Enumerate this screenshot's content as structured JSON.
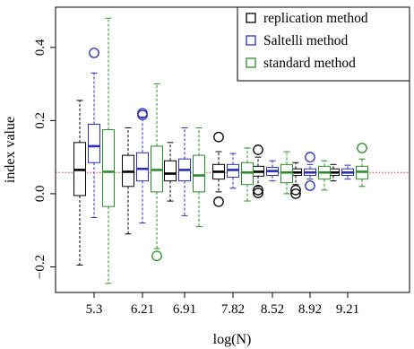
{
  "chart_data": {
    "type": "boxplot",
    "xlabel": "log(N)",
    "ylabel": "index value",
    "categories": [
      "5.3",
      "6.21",
      "6.91",
      "7.82",
      "8.52",
      "8.92",
      "9.21"
    ],
    "ylim": [
      -0.27,
      0.51
    ],
    "yticks": [
      -0.2,
      0.0,
      0.2,
      0.4
    ],
    "ytick_labels": [
      "−0.2",
      "0.0",
      "0.2",
      "0.4"
    ],
    "reference_line": {
      "y": 0.058,
      "color": "#e8302a",
      "style": "dotted"
    },
    "legend": {
      "position": "top-right"
    },
    "series": [
      {
        "name": "replication method",
        "color": "#000000",
        "boxes": [
          {
            "whisker_low": -0.195,
            "q1": -0.005,
            "median": 0.065,
            "q3": 0.14,
            "whisker_high": 0.255,
            "outliers": []
          },
          {
            "whisker_low": -0.11,
            "q1": 0.02,
            "median": 0.06,
            "q3": 0.105,
            "whisker_high": 0.18,
            "outliers": []
          },
          {
            "whisker_low": -0.02,
            "q1": 0.035,
            "median": 0.055,
            "q3": 0.09,
            "whisker_high": 0.14,
            "outliers": []
          },
          {
            "whisker_low": 0.005,
            "q1": 0.04,
            "median": 0.06,
            "q3": 0.08,
            "whisker_high": 0.115,
            "outliers": [
              0.155,
              -0.022
            ]
          },
          {
            "whisker_low": 0.02,
            "q1": 0.048,
            "median": 0.06,
            "q3": 0.075,
            "whisker_high": 0.1,
            "outliers": [
              0.12,
              0.01,
              0.002
            ]
          },
          {
            "whisker_low": 0.025,
            "q1": 0.05,
            "median": 0.058,
            "q3": 0.068,
            "whisker_high": 0.085,
            "outliers": [
              0.01,
              0.0
            ]
          },
          {
            "whisker_low": 0.035,
            "q1": 0.05,
            "median": 0.058,
            "q3": 0.068,
            "whisker_high": 0.08,
            "outliers": []
          }
        ]
      },
      {
        "name": "Saltelli method",
        "color": "#2b2fb3",
        "boxes": [
          {
            "whisker_low": -0.065,
            "q1": 0.085,
            "median": 0.13,
            "q3": 0.19,
            "whisker_high": 0.33,
            "outliers": [
              0.385
            ]
          },
          {
            "whisker_low": -0.08,
            "q1": 0.035,
            "median": 0.068,
            "q3": 0.112,
            "whisker_high": 0.21,
            "outliers": [
              0.22,
              0.215
            ]
          },
          {
            "whisker_low": -0.06,
            "q1": 0.035,
            "median": 0.065,
            "q3": 0.095,
            "whisker_high": 0.18,
            "outliers": []
          },
          {
            "whisker_low": 0.015,
            "q1": 0.045,
            "median": 0.065,
            "q3": 0.08,
            "whisker_high": 0.11,
            "outliers": []
          },
          {
            "whisker_low": 0.035,
            "q1": 0.05,
            "median": 0.062,
            "q3": 0.072,
            "whisker_high": 0.09,
            "outliers": []
          },
          {
            "whisker_low": 0.04,
            "q1": 0.05,
            "median": 0.058,
            "q3": 0.068,
            "whisker_high": 0.08,
            "outliers": [
              0.1,
              0.022
            ]
          },
          {
            "whisker_low": 0.04,
            "q1": 0.05,
            "median": 0.058,
            "q3": 0.068,
            "whisker_high": 0.078,
            "outliers": []
          }
        ]
      },
      {
        "name": "standard method",
        "color": "#2e8b2e",
        "boxes": [
          {
            "whisker_low": -0.245,
            "q1": -0.035,
            "median": 0.06,
            "q3": 0.175,
            "whisker_high": 0.48,
            "outliers": []
          },
          {
            "whisker_low": -0.15,
            "q1": 0.005,
            "median": 0.065,
            "q3": 0.13,
            "whisker_high": 0.3,
            "outliers": [
              -0.17
            ]
          },
          {
            "whisker_low": -0.09,
            "q1": 0.005,
            "median": 0.05,
            "q3": 0.105,
            "whisker_high": 0.18,
            "outliers": []
          },
          {
            "whisker_low": -0.02,
            "q1": 0.025,
            "median": 0.058,
            "q3": 0.085,
            "whisker_high": 0.125,
            "outliers": []
          },
          {
            "whisker_low": 0.0,
            "q1": 0.03,
            "median": 0.058,
            "q3": 0.08,
            "whisker_high": 0.115,
            "outliers": []
          },
          {
            "whisker_low": 0.01,
            "q1": 0.04,
            "median": 0.058,
            "q3": 0.075,
            "whisker_high": 0.09,
            "outliers": []
          },
          {
            "whisker_low": 0.02,
            "q1": 0.04,
            "median": 0.06,
            "q3": 0.075,
            "whisker_high": 0.095,
            "outliers": [
              0.125
            ]
          }
        ]
      }
    ]
  }
}
